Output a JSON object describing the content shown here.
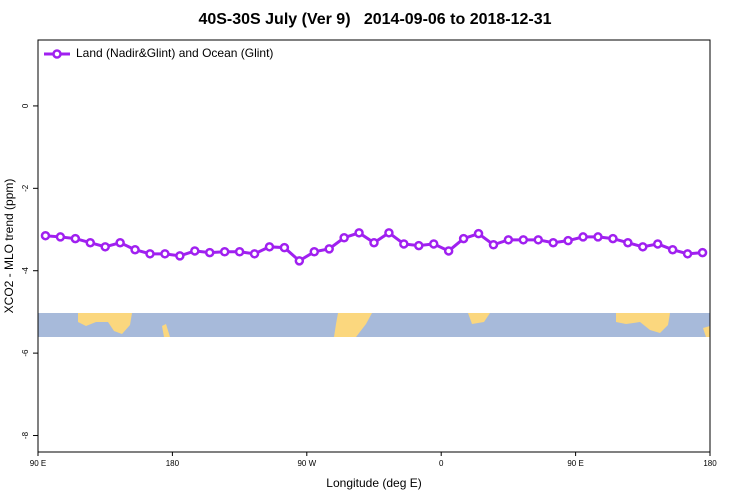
{
  "chart_data": {
    "type": "line",
    "title": "40S-30S July (Ver 9)   2014-09-06 to 2018-12-31",
    "x_label": "Longitude (deg E)",
    "y_label": "XCO2 - MLO trend (ppm)",
    "x": [
      95,
      105,
      115,
      125,
      135,
      145,
      155,
      165,
      175,
      185,
      195,
      205,
      215,
      225,
      235,
      245,
      255,
      265,
      275,
      285,
      295,
      305,
      315,
      325,
      335,
      345,
      355,
      365,
      375,
      385,
      395,
      405,
      415,
      425,
      435,
      445,
      455,
      465,
      475,
      485,
      495,
      505,
      515,
      525,
      535
    ],
    "series": [
      {
        "name": "Land (Nadir&Glint) and Ocean (Glint)",
        "color": "#a020f0",
        "values": [
          -3.15,
          -3.18,
          -3.22,
          -3.32,
          -3.42,
          -3.32,
          -3.49,
          -3.59,
          -3.59,
          -3.64,
          -3.52,
          -3.56,
          -3.54,
          -3.54,
          -3.59,
          -3.42,
          -3.44,
          -3.76,
          -3.54,
          -3.47,
          -3.2,
          -3.08,
          -3.32,
          -3.08,
          -3.35,
          -3.39,
          -3.35,
          -3.52,
          -3.22,
          -3.1,
          -3.37,
          -3.25,
          -3.25,
          -3.25,
          -3.32,
          -3.27,
          -3.18,
          -3.18,
          -3.22,
          -3.32,
          -3.42,
          -3.35,
          -3.49,
          -3.59,
          -3.56
        ]
      }
    ],
    "xlim": [
      90,
      540
    ],
    "xticks": [
      {
        "value": 90,
        "label": "90 E"
      },
      180,
      {
        "value": 270,
        "label": "90 W"
      },
      {
        "value": 360,
        "label": "0"
      },
      {
        "value": 450,
        "label": "90 E"
      },
      {
        "value": 540,
        "label": "180"
      }
    ],
    "ylim": [
      -8.4,
      1.6
    ],
    "yticks": [
      0,
      -2,
      -4,
      -6,
      -8
    ],
    "legend": "top-left"
  }
}
